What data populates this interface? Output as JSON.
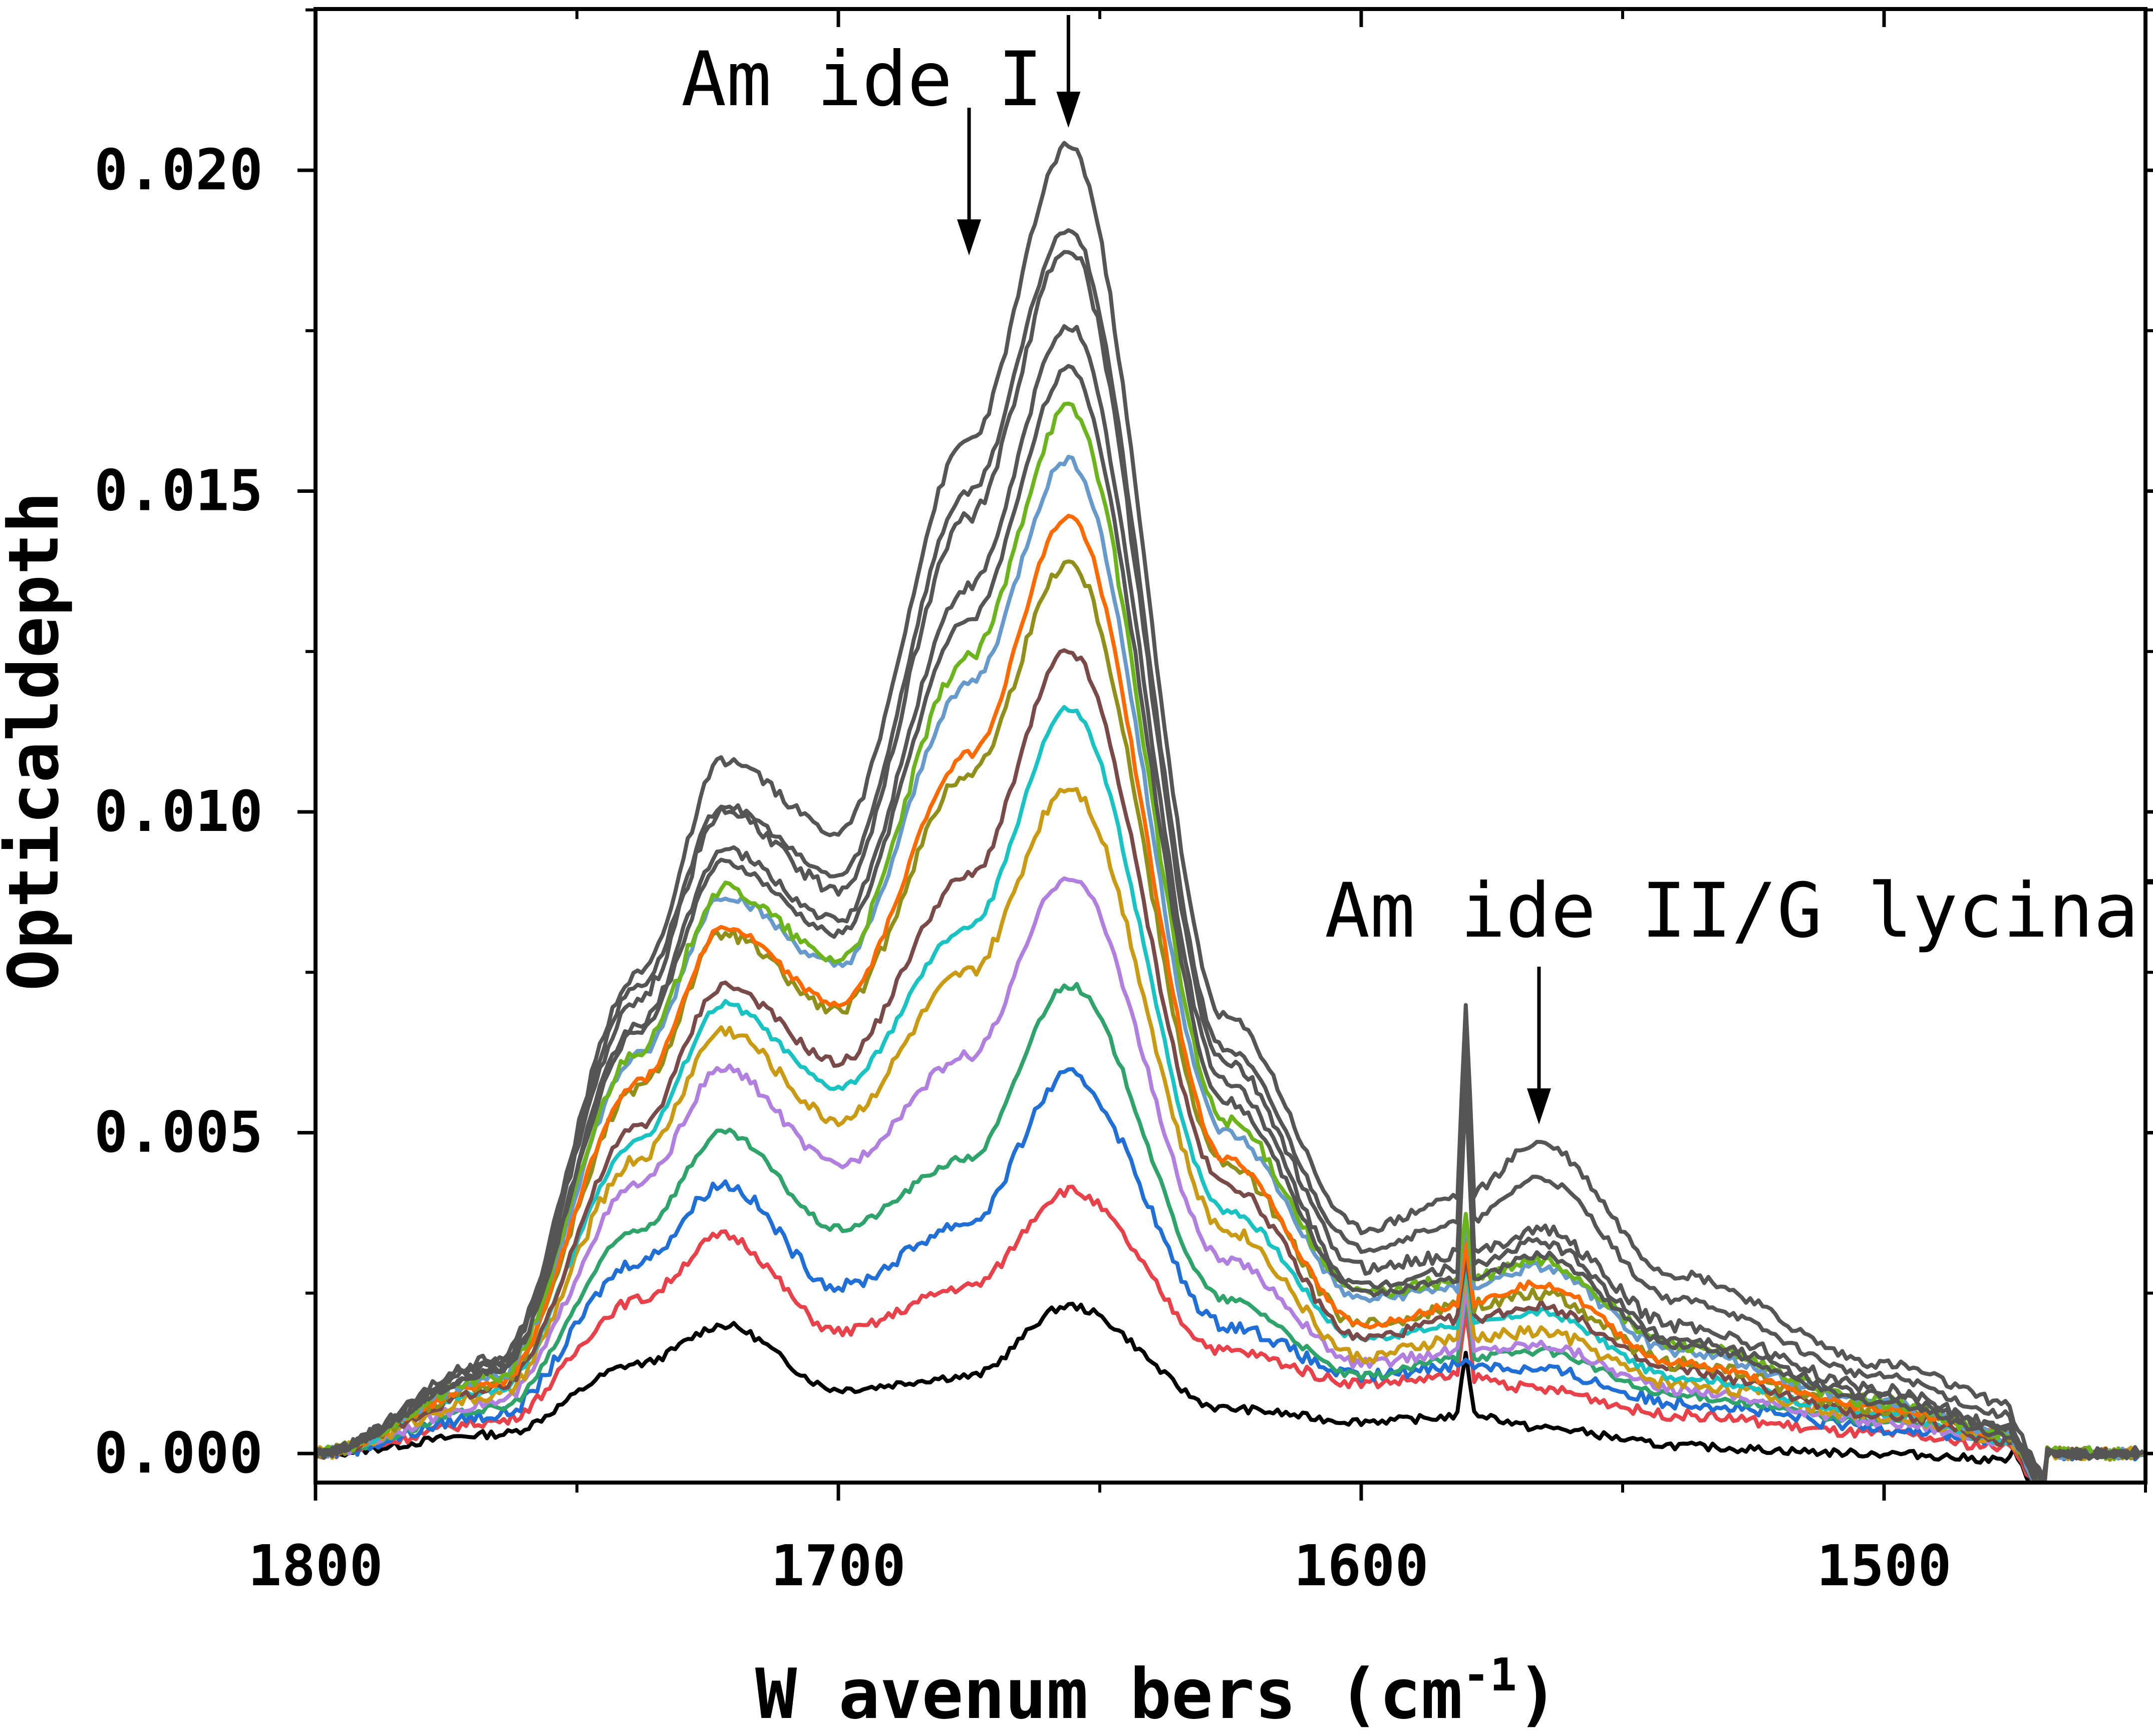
{
  "chart_data": {
    "type": "line",
    "xlabel": "W avenum bers (cm",
    "xlabel_superscript": "-1",
    "xlabel_close": ")",
    "ylabel": "Opticaldepth",
    "xlim": [
      1800,
      1450
    ],
    "ylim": [
      -0.0005,
      0.0225
    ],
    "x_reversed": true,
    "x_ticks": [
      1800,
      1700,
      1600,
      1500
    ],
    "x_tick_labels": [
      "1800",
      "1700",
      "1600",
      "1500"
    ],
    "y_ticks": [
      0.0,
      0.005,
      0.01,
      0.015,
      0.02
    ],
    "y_tick_labels": [
      "0.000",
      "0.005",
      "0.010",
      "0.015",
      "0.020"
    ],
    "grid": false,
    "legend": "none",
    "annotations": [
      {
        "text": "Am ide I",
        "arrow_x": [
          1675,
          1656
        ],
        "arrow_y_tip": [
          0.0185,
          0.0208
        ]
      },
      {
        "text": "Am ide II/G lycinal",
        "arrow_x": [
          1566
        ],
        "arrow_y_tip": [
          0.0052
        ]
      }
    ],
    "spike": {
      "x": 1580,
      "sharp": true
    },
    "series": [
      {
        "color": "#000000",
        "v": [
          0.0,
          0.0003,
          0.0014,
          0.002,
          0.001,
          0.0012,
          0.0023,
          0.0007,
          0.0005,
          0.0005,
          0.0002,
          0.0001,
          0.0,
          -0.0001
        ],
        "peak2": 0.0006
      },
      {
        "color": "#e8414a",
        "v": [
          0.0,
          0.0005,
          0.0024,
          0.0034,
          0.0019,
          0.0026,
          0.0041,
          0.0016,
          0.0011,
          0.0012,
          0.001,
          0.0006,
          0.0003,
          0.0001
        ],
        "peak2": 0.001
      },
      {
        "color": "#1f6fd6",
        "v": [
          0.0,
          0.0006,
          0.003,
          0.0042,
          0.0026,
          0.0036,
          0.0059,
          0.002,
          0.0012,
          0.0014,
          0.0013,
          0.0008,
          0.0004,
          0.0002
        ],
        "peak2": 0.0013
      },
      {
        "color": "#2ea36a",
        "v": [
          0.0,
          0.0007,
          0.0035,
          0.005,
          0.0035,
          0.0046,
          0.0073,
          0.0024,
          0.0012,
          0.0015,
          0.0016,
          0.0009,
          0.0005,
          0.0002
        ],
        "peak2": 0.0016
      },
      {
        "color": "#b07fe0",
        "v": [
          0.0,
          0.0008,
          0.0042,
          0.006,
          0.0045,
          0.0062,
          0.009,
          0.003,
          0.0014,
          0.0016,
          0.0017,
          0.001,
          0.0005,
          0.0002
        ],
        "peak2": 0.0017
      },
      {
        "color": "#c99a12",
        "v": [
          0.0,
          0.0009,
          0.0046,
          0.0066,
          0.0052,
          0.0075,
          0.0104,
          0.0035,
          0.0015,
          0.0018,
          0.0019,
          0.0011,
          0.0006,
          0.0002
        ],
        "peak2": 0.0019
      },
      {
        "color": "#17c3c3",
        "v": [
          0.0,
          0.001,
          0.0049,
          0.007,
          0.0057,
          0.0082,
          0.0116,
          0.0038,
          0.0018,
          0.002,
          0.0022,
          0.0012,
          0.0006,
          0.0002
        ],
        "peak2": 0.0022
      },
      {
        "color": "#7a4a48",
        "v": [
          0.0,
          0.001,
          0.0051,
          0.0073,
          0.0061,
          0.009,
          0.0125,
          0.0042,
          0.0018,
          0.0021,
          0.0023,
          0.0013,
          0.0006,
          0.0002
        ],
        "peak2": 0.0023
      },
      {
        "color": "#8f8f1a",
        "v": [
          0.0,
          0.0011,
          0.0057,
          0.0081,
          0.0069,
          0.0106,
          0.0139,
          0.0045,
          0.002,
          0.0023,
          0.0025,
          0.0014,
          0.0007,
          0.0003
        ],
        "peak2": 0.0025
      },
      {
        "color": "#ff6a00",
        "v": [
          0.0,
          0.0011,
          0.0058,
          0.0082,
          0.007,
          0.0109,
          0.0146,
          0.0046,
          0.002,
          0.0023,
          0.0026,
          0.0014,
          0.0007,
          0.0003
        ],
        "peak2": 0.0027
      },
      {
        "color": "#6699cc",
        "v": [
          0.0,
          0.0012,
          0.0062,
          0.0087,
          0.0076,
          0.012,
          0.0155,
          0.005,
          0.0024,
          0.0026,
          0.0029,
          0.0016,
          0.0008,
          0.0003
        ],
        "peak2": 0.0029
      },
      {
        "color": "#6cb41c",
        "v": [
          0.0,
          0.0012,
          0.0063,
          0.0088,
          0.0077,
          0.0124,
          0.0163,
          0.0052,
          0.0025,
          0.0027,
          0.003,
          0.0017,
          0.0008,
          0.0003
        ],
        "peak2": 0.003
      },
      {
        "color": "#555555",
        "v": [
          0.0,
          0.0013,
          0.0066,
          0.0092,
          0.0081,
          0.013,
          0.0169,
          0.0055,
          0.0025,
          0.0027,
          0.0031,
          0.0017,
          0.0008,
          0.0003
        ],
        "peak2": 0.0031
      },
      {
        "color": "#555555",
        "v": [
          0.0,
          0.0013,
          0.0067,
          0.0094,
          0.0083,
          0.0135,
          0.0176,
          0.0058,
          0.0026,
          0.0029,
          0.0033,
          0.0018,
          0.0009,
          0.0004
        ],
        "peak2": 0.0033
      },
      {
        "color": "#555555",
        "v": [
          0.0,
          0.0014,
          0.0071,
          0.01,
          0.0088,
          0.0146,
          0.0188,
          0.0061,
          0.0029,
          0.0031,
          0.0035,
          0.002,
          0.001,
          0.0004
        ],
        "peak2": 0.0035
      },
      {
        "color": "#555555",
        "v": [
          0.0,
          0.0014,
          0.0073,
          0.0101,
          0.009,
          0.015,
          0.0191,
          0.0063,
          0.0032,
          0.0036,
          0.0043,
          0.0024,
          0.0012,
          0.0006
        ],
        "peak2": 0.0043
      },
      {
        "color": "#555555",
        "v": [
          0.0,
          0.0015,
          0.0075,
          0.0108,
          0.0097,
          0.0158,
          0.0204,
          0.0068,
          0.0035,
          0.004,
          0.0048,
          0.0028,
          0.0014,
          0.0008
        ],
        "peak2": 0.0049
      }
    ]
  }
}
